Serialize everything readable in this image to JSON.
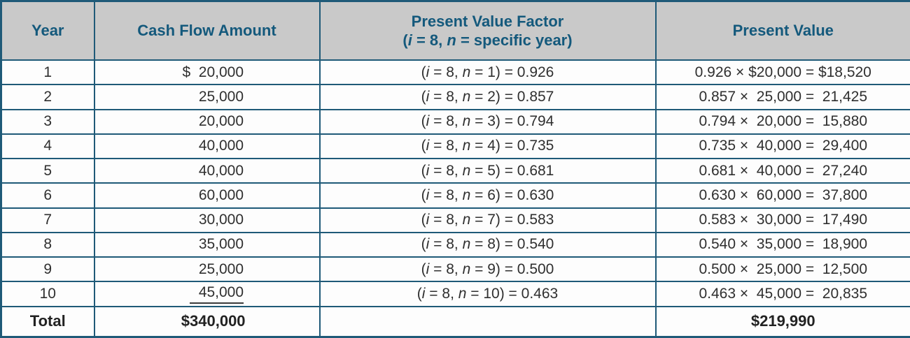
{
  "colors": {
    "border": "#1f5a78",
    "header_bg": "#c9c9c9",
    "header_text": "#14597c",
    "body_text": "#2f2f2f",
    "row_bg": "#fdfdfd",
    "underline": "#3c3c3c"
  },
  "table": {
    "headers": {
      "year": "Year",
      "cash_flow": "Cash Flow Amount",
      "pv_factor_line1": "Present Value Factor",
      "pv_factor_suffix": " = specific year)",
      "present_value": "Present Value"
    },
    "factor_parts": {
      "open": "(",
      "i": "i",
      "mid": " = 8, ",
      "n": "n"
    },
    "rows": [
      {
        "year": "1",
        "cash_flow": "$  20,000",
        "factor_suffix": " = 1) = 0.926",
        "present_value": "0.926 × $20,000 = $18,520"
      },
      {
        "year": "2",
        "cash_flow": "25,000",
        "factor_suffix": " = 2) = 0.857",
        "present_value": "0.857 ×  25,000 =  21,425"
      },
      {
        "year": "3",
        "cash_flow": "20,000",
        "factor_suffix": " = 3) = 0.794",
        "present_value": "0.794 ×  20,000 =  15,880"
      },
      {
        "year": "4",
        "cash_flow": "40,000",
        "factor_suffix": " = 4) = 0.735",
        "present_value": "0.735 ×  40,000 =  29,400"
      },
      {
        "year": "5",
        "cash_flow": "40,000",
        "factor_suffix": " = 5) = 0.681",
        "present_value": "0.681 ×  40,000 =  27,240"
      },
      {
        "year": "6",
        "cash_flow": "60,000",
        "factor_suffix": " = 6) = 0.630",
        "present_value": "0.630 ×  60,000 =  37,800"
      },
      {
        "year": "7",
        "cash_flow": "30,000",
        "factor_suffix": " = 7) = 0.583",
        "present_value": "0.583 ×  30,000 =  17,490"
      },
      {
        "year": "8",
        "cash_flow": "35,000",
        "factor_suffix": " = 8) = 0.540",
        "present_value": "0.540 ×  35,000 =  18,900"
      },
      {
        "year": "9",
        "cash_flow": "25,000",
        "factor_suffix": " = 9) = 0.500",
        "present_value": "0.500 ×  25,000 =  12,500"
      },
      {
        "year": "10",
        "cash_flow": "45,000",
        "factor_suffix": " = 10) = 0.463",
        "present_value": "0.463 ×  45,000 =  20,835",
        "underline_cash_flow": true
      }
    ],
    "total": {
      "label": "Total",
      "cash_flow": "$340,000",
      "factor": "",
      "present_value": "$219,990"
    }
  }
}
